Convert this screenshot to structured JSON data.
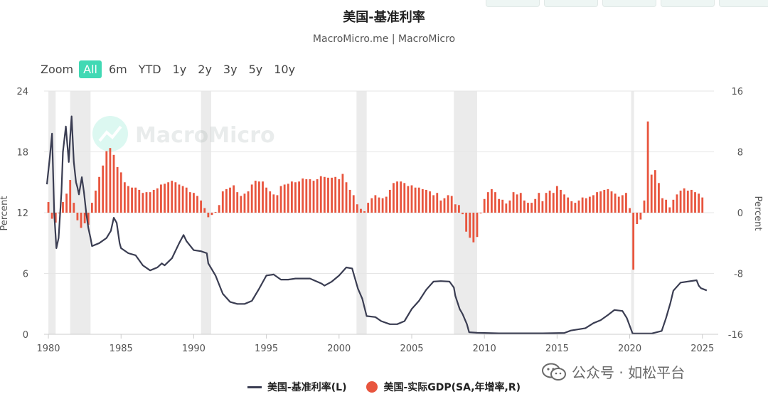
{
  "header": {
    "title": "美国-基准利率",
    "subtitle": "MacroMicro.me | MacroMicro"
  },
  "zoom": {
    "label": "Zoom",
    "buttons": [
      "All",
      "6m",
      "YTD",
      "1y",
      "2y",
      "3y",
      "5y",
      "10y"
    ],
    "active": "All"
  },
  "watermark": {
    "text": "MacroMicro"
  },
  "wechat": {
    "text": "公众号 · 如松平台",
    "icon": "wechat-icon"
  },
  "colors": {
    "rate_line": "#3a3d52",
    "gdp_bar": "#e8553e",
    "recession": "#ebebeb",
    "active_zoom": "#41d9b4"
  },
  "chart_data": {
    "type": "line+bar",
    "x_ticks": [
      "1980",
      "1985",
      "1990",
      "1995",
      "2000",
      "2005",
      "2010",
      "2015",
      "2020",
      "2025"
    ],
    "xlim": [
      1979.9,
      2025.6
    ],
    "left_axis": {
      "label": "Percent",
      "ylim": [
        0,
        24
      ],
      "ticks": [
        "0",
        "6",
        "12",
        "18",
        "24"
      ]
    },
    "right_axis": {
      "label": "Percent",
      "ylim": [
        -16,
        16
      ],
      "ticks": [
        "-16",
        "-8",
        "0",
        "8",
        "16"
      ]
    },
    "grid": true,
    "legend_position": "bottom",
    "recessions": [
      [
        1980.0,
        1980.5
      ],
      [
        1981.5,
        1982.9
      ],
      [
        1990.5,
        1991.2
      ],
      [
        2001.2,
        2001.9
      ],
      [
        2007.9,
        2009.5
      ],
      [
        2020.1,
        2020.3
      ]
    ],
    "series": [
      {
        "name": "美国-基准利率(L)",
        "type": "line",
        "axis": "left",
        "points": [
          [
            1979.9,
            14.8
          ],
          [
            1980.1,
            17.5
          ],
          [
            1980.25,
            19.8
          ],
          [
            1980.4,
            12.0
          ],
          [
            1980.55,
            8.5
          ],
          [
            1980.7,
            9.5
          ],
          [
            1980.9,
            14.0
          ],
          [
            1981.0,
            18.0
          ],
          [
            1981.2,
            20.5
          ],
          [
            1981.4,
            17.0
          ],
          [
            1981.5,
            19.5
          ],
          [
            1981.6,
            21.5
          ],
          [
            1981.75,
            17.0
          ],
          [
            1981.9,
            15.0
          ],
          [
            1982.0,
            14.5
          ],
          [
            1982.1,
            13.8
          ],
          [
            1982.3,
            15.5
          ],
          [
            1982.45,
            14.0
          ],
          [
            1982.6,
            12.0
          ],
          [
            1982.75,
            10.5
          ],
          [
            1982.9,
            9.5
          ],
          [
            1983.0,
            8.7
          ],
          [
            1983.5,
            9.0
          ],
          [
            1984.0,
            9.5
          ],
          [
            1984.3,
            10.2
          ],
          [
            1984.5,
            11.5
          ],
          [
            1984.7,
            11.0
          ],
          [
            1984.9,
            9.0
          ],
          [
            1985.0,
            8.5
          ],
          [
            1985.5,
            8.0
          ],
          [
            1986.0,
            7.8
          ],
          [
            1986.5,
            6.8
          ],
          [
            1987.0,
            6.3
          ],
          [
            1987.5,
            6.6
          ],
          [
            1987.8,
            7.0
          ],
          [
            1988.0,
            6.8
          ],
          [
            1988.5,
            7.5
          ],
          [
            1989.0,
            9.0
          ],
          [
            1989.3,
            9.8
          ],
          [
            1989.5,
            9.2
          ],
          [
            1990.0,
            8.3
          ],
          [
            1990.5,
            8.2
          ],
          [
            1990.9,
            8.0
          ],
          [
            1991.0,
            7.0
          ],
          [
            1991.5,
            5.8
          ],
          [
            1992.0,
            4.0
          ],
          [
            1992.5,
            3.2
          ],
          [
            1993.0,
            3.0
          ],
          [
            1993.5,
            3.0
          ],
          [
            1994.0,
            3.3
          ],
          [
            1994.5,
            4.5
          ],
          [
            1995.0,
            5.8
          ],
          [
            1995.5,
            5.9
          ],
          [
            1996.0,
            5.4
          ],
          [
            1996.5,
            5.4
          ],
          [
            1997.0,
            5.5
          ],
          [
            1997.5,
            5.5
          ],
          [
            1998.0,
            5.5
          ],
          [
            1998.8,
            5.0
          ],
          [
            1999.0,
            4.8
          ],
          [
            1999.5,
            5.2
          ],
          [
            2000.0,
            5.8
          ],
          [
            2000.5,
            6.6
          ],
          [
            2000.9,
            6.5
          ],
          [
            2001.0,
            6.0
          ],
          [
            2001.3,
            4.5
          ],
          [
            2001.6,
            3.5
          ],
          [
            2001.9,
            1.8
          ],
          [
            2002.5,
            1.7
          ],
          [
            2002.9,
            1.3
          ],
          [
            2003.5,
            1.0
          ],
          [
            2004.0,
            1.0
          ],
          [
            2004.5,
            1.3
          ],
          [
            2005.0,
            2.5
          ],
          [
            2005.5,
            3.3
          ],
          [
            2006.0,
            4.4
          ],
          [
            2006.5,
            5.2
          ],
          [
            2007.0,
            5.25
          ],
          [
            2007.6,
            5.2
          ],
          [
            2007.9,
            4.6
          ],
          [
            2008.0,
            3.8
          ],
          [
            2008.3,
            2.5
          ],
          [
            2008.5,
            2.0
          ],
          [
            2008.8,
            1.0
          ],
          [
            2008.95,
            0.2
          ],
          [
            2009.5,
            0.15
          ],
          [
            2011.0,
            0.1
          ],
          [
            2014.0,
            0.1
          ],
          [
            2015.5,
            0.13
          ],
          [
            2015.95,
            0.37
          ],
          [
            2016.95,
            0.6
          ],
          [
            2017.5,
            1.1
          ],
          [
            2018.0,
            1.4
          ],
          [
            2018.5,
            1.9
          ],
          [
            2018.95,
            2.4
          ],
          [
            2019.5,
            2.3
          ],
          [
            2019.8,
            1.6
          ],
          [
            2020.2,
            0.08
          ],
          [
            2021.5,
            0.08
          ],
          [
            2022.2,
            0.33
          ],
          [
            2022.5,
            1.6
          ],
          [
            2022.8,
            3.1
          ],
          [
            2023.0,
            4.3
          ],
          [
            2023.5,
            5.1
          ],
          [
            2024.6,
            5.33
          ],
          [
            2024.75,
            4.8
          ],
          [
            2024.9,
            4.55
          ],
          [
            2025.3,
            4.33
          ]
        ]
      },
      {
        "name": "美国-实际GDP(SA,年增率,R)",
        "type": "bar",
        "axis": "right",
        "points": [
          [
            1980.0,
            1.4
          ],
          [
            1980.25,
            -0.8
          ],
          [
            1980.5,
            -1.3
          ],
          [
            1980.75,
            -0.1
          ],
          [
            1981.0,
            1.4
          ],
          [
            1981.25,
            2.5
          ],
          [
            1981.5,
            4.3
          ],
          [
            1981.75,
            1.3
          ],
          [
            1982.0,
            -1.0
          ],
          [
            1982.25,
            -2.0
          ],
          [
            1982.5,
            -1.4
          ],
          [
            1982.75,
            -1.6
          ],
          [
            1983.0,
            1.3
          ],
          [
            1983.25,
            2.9
          ],
          [
            1983.5,
            4.7
          ],
          [
            1983.75,
            6.2
          ],
          [
            1984.0,
            8.1
          ],
          [
            1984.25,
            8.5
          ],
          [
            1984.5,
            7.6
          ],
          [
            1984.75,
            6.0
          ],
          [
            1985.0,
            5.3
          ],
          [
            1985.25,
            4.0
          ],
          [
            1985.5,
            3.5
          ],
          [
            1985.75,
            3.3
          ],
          [
            1986.0,
            3.3
          ],
          [
            1986.25,
            3.0
          ],
          [
            1986.5,
            2.6
          ],
          [
            1986.75,
            2.7
          ],
          [
            1987.0,
            2.7
          ],
          [
            1987.25,
            3.0
          ],
          [
            1987.5,
            3.2
          ],
          [
            1987.75,
            3.7
          ],
          [
            1988.0,
            3.8
          ],
          [
            1988.25,
            4.0
          ],
          [
            1988.5,
            4.2
          ],
          [
            1988.75,
            4.0
          ],
          [
            1989.0,
            3.7
          ],
          [
            1989.25,
            3.5
          ],
          [
            1989.5,
            3.3
          ],
          [
            1989.75,
            2.7
          ],
          [
            1990.0,
            2.6
          ],
          [
            1990.25,
            2.2
          ],
          [
            1990.5,
            1.6
          ],
          [
            1990.75,
            0.6
          ],
          [
            1991.0,
            -0.6
          ],
          [
            1991.25,
            -0.3
          ],
          [
            1991.5,
            0.1
          ],
          [
            1991.75,
            1.0
          ],
          [
            1992.0,
            2.8
          ],
          [
            1992.25,
            3.1
          ],
          [
            1992.5,
            3.3
          ],
          [
            1992.75,
            3.6
          ],
          [
            1993.0,
            2.7
          ],
          [
            1993.25,
            2.2
          ],
          [
            1993.5,
            2.5
          ],
          [
            1993.75,
            2.8
          ],
          [
            1994.0,
            3.7
          ],
          [
            1994.25,
            4.2
          ],
          [
            1994.5,
            4.1
          ],
          [
            1994.75,
            4.1
          ],
          [
            1995.0,
            3.3
          ],
          [
            1995.25,
            2.8
          ],
          [
            1995.5,
            2.4
          ],
          [
            1995.75,
            2.3
          ],
          [
            1996.0,
            3.5
          ],
          [
            1996.25,
            3.7
          ],
          [
            1996.5,
            3.8
          ],
          [
            1996.75,
            4.1
          ],
          [
            1997.0,
            4.0
          ],
          [
            1997.25,
            4.1
          ],
          [
            1997.5,
            4.5
          ],
          [
            1997.75,
            4.4
          ],
          [
            1998.0,
            4.4
          ],
          [
            1998.25,
            4.2
          ],
          [
            1998.5,
            4.4
          ],
          [
            1998.75,
            4.8
          ],
          [
            1999.0,
            4.7
          ],
          [
            1999.25,
            4.6
          ],
          [
            1999.5,
            4.6
          ],
          [
            1999.75,
            4.7
          ],
          [
            2000.0,
            4.4
          ],
          [
            2000.25,
            5.1
          ],
          [
            2000.5,
            4.0
          ],
          [
            2000.75,
            3.0
          ],
          [
            2001.0,
            2.3
          ],
          [
            2001.25,
            1.1
          ],
          [
            2001.5,
            0.5
          ],
          [
            2001.75,
            0.2
          ],
          [
            2002.0,
            1.3
          ],
          [
            2002.25,
            1.9
          ],
          [
            2002.5,
            2.3
          ],
          [
            2002.75,
            2.0
          ],
          [
            2003.0,
            1.9
          ],
          [
            2003.25,
            2.1
          ],
          [
            2003.5,
            3.0
          ],
          [
            2003.75,
            3.9
          ],
          [
            2004.0,
            4.1
          ],
          [
            2004.25,
            4.1
          ],
          [
            2004.5,
            3.9
          ],
          [
            2004.75,
            3.5
          ],
          [
            2005.0,
            3.6
          ],
          [
            2005.25,
            3.3
          ],
          [
            2005.5,
            3.3
          ],
          [
            2005.75,
            3.1
          ],
          [
            2006.0,
            3.0
          ],
          [
            2006.25,
            2.8
          ],
          [
            2006.5,
            2.3
          ],
          [
            2006.75,
            2.6
          ],
          [
            2007.0,
            1.6
          ],
          [
            2007.25,
            1.9
          ],
          [
            2007.5,
            2.3
          ],
          [
            2007.75,
            2.2
          ],
          [
            2008.0,
            1.1
          ],
          [
            2008.25,
            1.0
          ],
          [
            2008.5,
            -0.2
          ],
          [
            2008.75,
            -2.5
          ],
          [
            2009.0,
            -3.3
          ],
          [
            2009.25,
            -3.9
          ],
          [
            2009.5,
            -3.2
          ],
          [
            2009.75,
            -0.1
          ],
          [
            2010.0,
            1.8
          ],
          [
            2010.25,
            2.7
          ],
          [
            2010.5,
            3.1
          ],
          [
            2010.75,
            2.7
          ],
          [
            2011.0,
            1.8
          ],
          [
            2011.25,
            1.7
          ],
          [
            2011.5,
            1.2
          ],
          [
            2011.75,
            1.6
          ],
          [
            2012.0,
            2.7
          ],
          [
            2012.25,
            2.4
          ],
          [
            2012.5,
            2.6
          ],
          [
            2012.75,
            1.6
          ],
          [
            2013.0,
            1.3
          ],
          [
            2013.25,
            1.3
          ],
          [
            2013.5,
            1.8
          ],
          [
            2013.75,
            2.6
          ],
          [
            2014.0,
            1.5
          ],
          [
            2014.25,
            2.6
          ],
          [
            2014.5,
            2.9
          ],
          [
            2014.75,
            2.6
          ],
          [
            2015.0,
            3.5
          ],
          [
            2015.25,
            3.0
          ],
          [
            2015.5,
            2.4
          ],
          [
            2015.75,
            2.0
          ],
          [
            2016.0,
            1.5
          ],
          [
            2016.25,
            1.3
          ],
          [
            2016.5,
            1.6
          ],
          [
            2016.75,
            2.0
          ],
          [
            2017.0,
            1.9
          ],
          [
            2017.25,
            2.1
          ],
          [
            2017.5,
            2.3
          ],
          [
            2017.75,
            2.7
          ],
          [
            2018.0,
            2.8
          ],
          [
            2018.25,
            3.0
          ],
          [
            2018.5,
            3.1
          ],
          [
            2018.75,
            2.8
          ],
          [
            2019.0,
            2.5
          ],
          [
            2019.25,
            2.1
          ],
          [
            2019.5,
            2.3
          ],
          [
            2019.75,
            2.6
          ],
          [
            2020.0,
            0.6
          ],
          [
            2020.25,
            -7.5
          ],
          [
            2020.5,
            -1.5
          ],
          [
            2020.75,
            -0.9
          ],
          [
            2021.0,
            1.6
          ],
          [
            2021.25,
            12.0
          ],
          [
            2021.5,
            5.0
          ],
          [
            2021.75,
            5.6
          ],
          [
            2022.0,
            3.9
          ],
          [
            2022.25,
            1.9
          ],
          [
            2022.5,
            1.7
          ],
          [
            2022.75,
            0.7
          ],
          [
            2023.0,
            1.7
          ],
          [
            2023.25,
            2.4
          ],
          [
            2023.5,
            2.9
          ],
          [
            2023.75,
            3.2
          ],
          [
            2024.0,
            2.9
          ],
          [
            2024.25,
            3.0
          ],
          [
            2024.5,
            2.7
          ],
          [
            2024.75,
            2.5
          ],
          [
            2025.0,
            2.0
          ]
        ]
      }
    ]
  }
}
